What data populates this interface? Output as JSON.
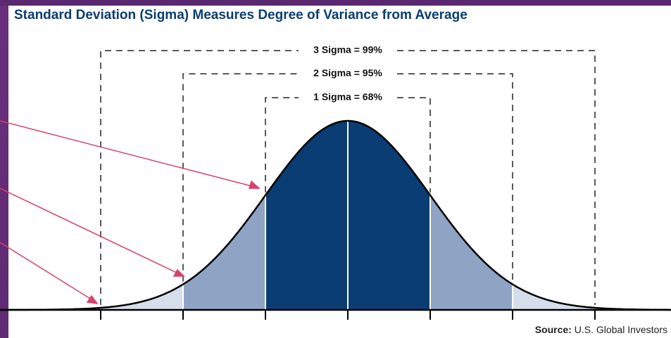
{
  "header": {
    "title": "Standard Deviation (Sigma) Measures Degree of Variance from Average"
  },
  "brackets": [
    {
      "label": "3 Sigma = 99%"
    },
    {
      "label": "2 Sigma = 95%"
    },
    {
      "label": "1 Sigma = 68%"
    }
  ],
  "source": {
    "label": "Source:",
    "text": "U.S. Global Investors"
  }
}
